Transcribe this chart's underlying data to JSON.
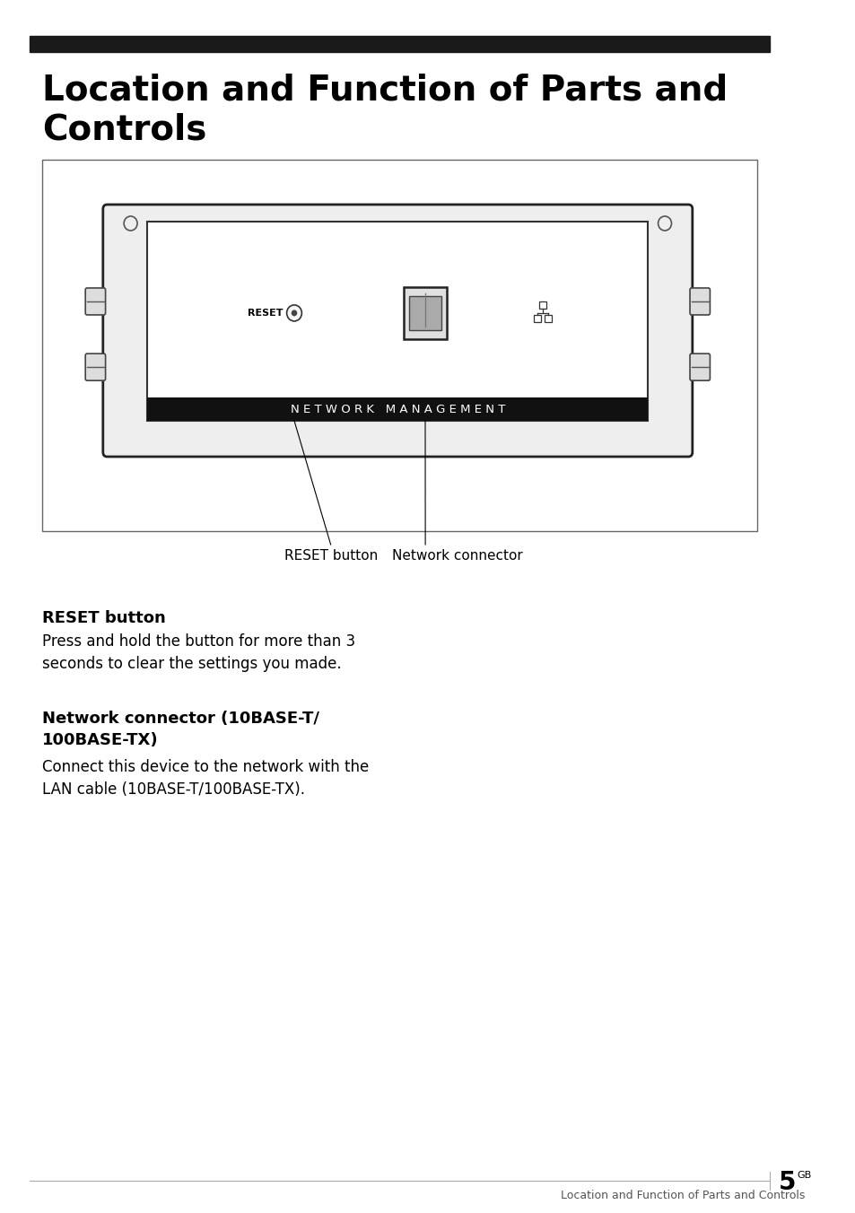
{
  "title_line1": "Location and Function of Parts and",
  "title_line2": "Controls",
  "title_bar_color": "#1a1a1a",
  "title_fontsize": 28,
  "bg_color": "#ffffff",
  "section1_heading": "RESET button",
  "section1_body": "Press and hold the button for more than 3\nseconds to clear the settings you made.",
  "section2_heading": "Network connector (10BASE-T/\n100BASE-TX)",
  "section2_body": "Connect this device to the network with the\nLAN cable (10BASE-T/100BASE-TX).",
  "footer_text": "Location and Function of Parts and Controls",
  "footer_page": "5",
  "footer_page_sup": "GB",
  "network_management_label": "N E T W O R K   M A N A G E M E N T",
  "reset_button_label": "RESET button",
  "network_connector_label": "Network connector"
}
